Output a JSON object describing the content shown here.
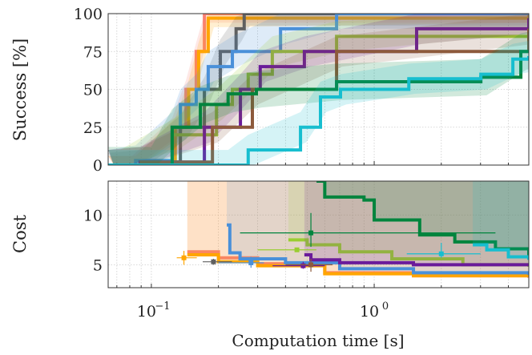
{
  "chart_data": [
    {
      "type": "line",
      "panel": "success",
      "ylabel": "Success [%]",
      "ylim": [
        0,
        100
      ],
      "yticks": [
        0,
        25,
        50,
        75,
        100
      ],
      "xscale": "log",
      "xlim": [
        0.064,
        4.94
      ],
      "grid": true,
      "series": [
        {
          "color": "#fa8072",
          "band": 6,
          "x": [
            0.064,
            0.082,
            0.124,
            0.143,
            0.159,
            0.173,
            4.94
          ],
          "y": [
            0,
            0,
            25,
            50,
            75,
            100,
            100
          ]
        },
        {
          "color": "#ffa500",
          "band": 6,
          "x": [
            0.064,
            0.085,
            0.128,
            0.147,
            0.163,
            0.18,
            4.94
          ],
          "y": [
            0,
            0,
            25,
            50,
            75,
            97,
            100
          ]
        },
        {
          "color": "#606060",
          "band": 8,
          "x": [
            0.064,
            0.09,
            0.135,
            0.173,
            0.204,
            0.24,
            0.261,
            4.94
          ],
          "y": [
            0,
            2,
            25,
            50,
            75,
            90,
            100,
            100
          ]
        },
        {
          "color": "#4a90d9",
          "band": 10,
          "x": [
            0.064,
            0.085,
            0.124,
            0.135,
            0.159,
            0.18,
            0.231,
            0.38,
            0.678,
            4.94
          ],
          "y": [
            0,
            3,
            25,
            40,
            50,
            65,
            75,
            90,
            100,
            100
          ]
        },
        {
          "color": "#9acd32",
          "band": 10,
          "x": [
            0.064,
            0.0724,
            0.124,
            0.196,
            0.231,
            0.272,
            0.349,
            0.678,
            4.94
          ],
          "y": [
            0,
            0,
            20,
            40,
            50,
            60,
            75,
            85,
            97
          ]
        },
        {
          "color": "#6a1b9a",
          "band": 10,
          "x": [
            0.064,
            0.089,
            0.173,
            0.251,
            0.308,
            0.486,
            1.55,
            4.94
          ],
          "y": [
            0,
            2,
            25,
            50,
            65,
            75,
            90,
            97
          ]
        },
        {
          "color": "#8d5a3c",
          "band": 10,
          "x": [
            0.064,
            0.09,
            0.188,
            0.284,
            0.678,
            4.94
          ],
          "y": [
            0,
            2,
            25,
            50,
            75,
            90
          ]
        },
        {
          "color": "#00843d",
          "band": 12,
          "x": [
            0.064,
            0.1,
            0.124,
            0.166,
            0.221,
            0.296,
            0.678,
            3.01,
            4.55,
            4.94
          ],
          "y": [
            0,
            0,
            25,
            40,
            47,
            50,
            55,
            58,
            75,
            76
          ]
        },
        {
          "color": "#17becf",
          "band": 10,
          "x": [
            0.064,
            0.221,
            0.272,
            0.467,
            0.574,
            0.706,
            1.43,
            3.01,
            4.19,
            4.94
          ],
          "y": [
            0,
            0,
            10,
            25,
            45,
            50,
            57,
            60,
            70,
            72
          ]
        }
      ]
    },
    {
      "type": "line",
      "panel": "cost",
      "ylabel": "Cost",
      "ylim": [
        2.7,
        13.4
      ],
      "yticks": [
        5,
        10
      ],
      "xscale": "log",
      "xlim": [
        0.064,
        4.94
      ],
      "xticks": [
        {
          "value": 0.1,
          "label": "10",
          "exp": "−1"
        },
        {
          "value": 1,
          "label": "10",
          "exp": "0"
        }
      ],
      "xlabel": "Computation time [s]",
      "grid": true,
      "series": [
        {
          "color": "#fa8072",
          "x": [
            0.145,
            0.2,
            0.3,
            0.6,
            1.5,
            4.94
          ],
          "y": [
            6.3,
            5.7,
            5.1,
            4.2,
            3.9,
            3.7
          ]
        },
        {
          "color": "#ffa500",
          "x": [
            0.145,
            0.2,
            0.3,
            0.6,
            1.5,
            4.94
          ],
          "y": [
            6.0,
            5.3,
            4.9,
            4.1,
            3.9,
            3.8
          ]
        },
        {
          "color": "#4a90d9",
          "x": [
            0.218,
            0.225,
            0.25,
            0.4,
            0.7,
            1.5,
            4.94
          ],
          "y": [
            9,
            6.2,
            5.6,
            5.2,
            4.6,
            4.2,
            4.0
          ]
        },
        {
          "color": "#9acd32",
          "x": [
            0.412,
            0.5,
            0.7,
            1.2,
            2.5,
            4.94
          ],
          "y": [
            7.5,
            7.0,
            6.3,
            5.6,
            5.0,
            4.8
          ]
        },
        {
          "color": "#6a1b9a",
          "x": [
            0.486,
            0.52,
            0.7,
            1.5,
            4.94
          ],
          "y": [
            6.0,
            5.5,
            5.2,
            5.0,
            5.0
          ]
        },
        {
          "color": "#00843d",
          "x": [
            0.551,
            0.6,
            0.9,
            1.0,
            1.6,
            2.3,
            3.5,
            4.94
          ],
          "y": [
            13.4,
            11.8,
            11.5,
            9.5,
            8.0,
            7.3,
            6.6,
            5.8
          ]
        },
        {
          "color": "#17becf",
          "x": [
            2.77,
            3.2,
            4.0,
            4.94
          ],
          "y": [
            7.0,
            6.5,
            5.8,
            5.5
          ]
        }
      ],
      "markers": [
        {
          "color": "#ffa500",
          "x": 0.14,
          "y": 5.7,
          "xerr": [
            0.13,
            0.16
          ],
          "yerr": [
            5.0,
            6.4
          ]
        },
        {
          "color": "#606060",
          "x": 0.19,
          "y": 5.3,
          "xerr": [
            0.17,
            0.23
          ],
          "yerr": [
            5.0,
            5.6
          ]
        },
        {
          "color": "#4a90d9",
          "x": 0.28,
          "y": 5.2,
          "xerr": [
            0.2,
            0.32
          ],
          "yerr": [
            4.7,
            5.8
          ]
        },
        {
          "color": "#9acd32",
          "x": 0.45,
          "y": 6.5,
          "xerr": [
            0.3,
            0.55
          ],
          "yerr": [
            6.3,
            6.7
          ]
        },
        {
          "color": "#6a1b9a",
          "x": 0.48,
          "y": 4.9,
          "xerr": [
            0.35,
            0.6
          ],
          "yerr": [
            4.6,
            5.3
          ]
        },
        {
          "color": "#8d5a3c",
          "x": 0.52,
          "y": 5.0,
          "xerr": [
            0.4,
            0.65
          ],
          "yerr": [
            4.3,
            5.6
          ]
        },
        {
          "color": "#00843d",
          "x": 0.52,
          "y": 8.2,
          "xerr": [
            0.25,
            3.5
          ],
          "yerr": [
            6.8,
            10.2
          ]
        },
        {
          "color": "#17becf",
          "x": 2.0,
          "y": 6.1,
          "xerr": [
            1.4,
            3.0
          ],
          "yerr": [
            5.7,
            7.2
          ]
        }
      ]
    }
  ]
}
